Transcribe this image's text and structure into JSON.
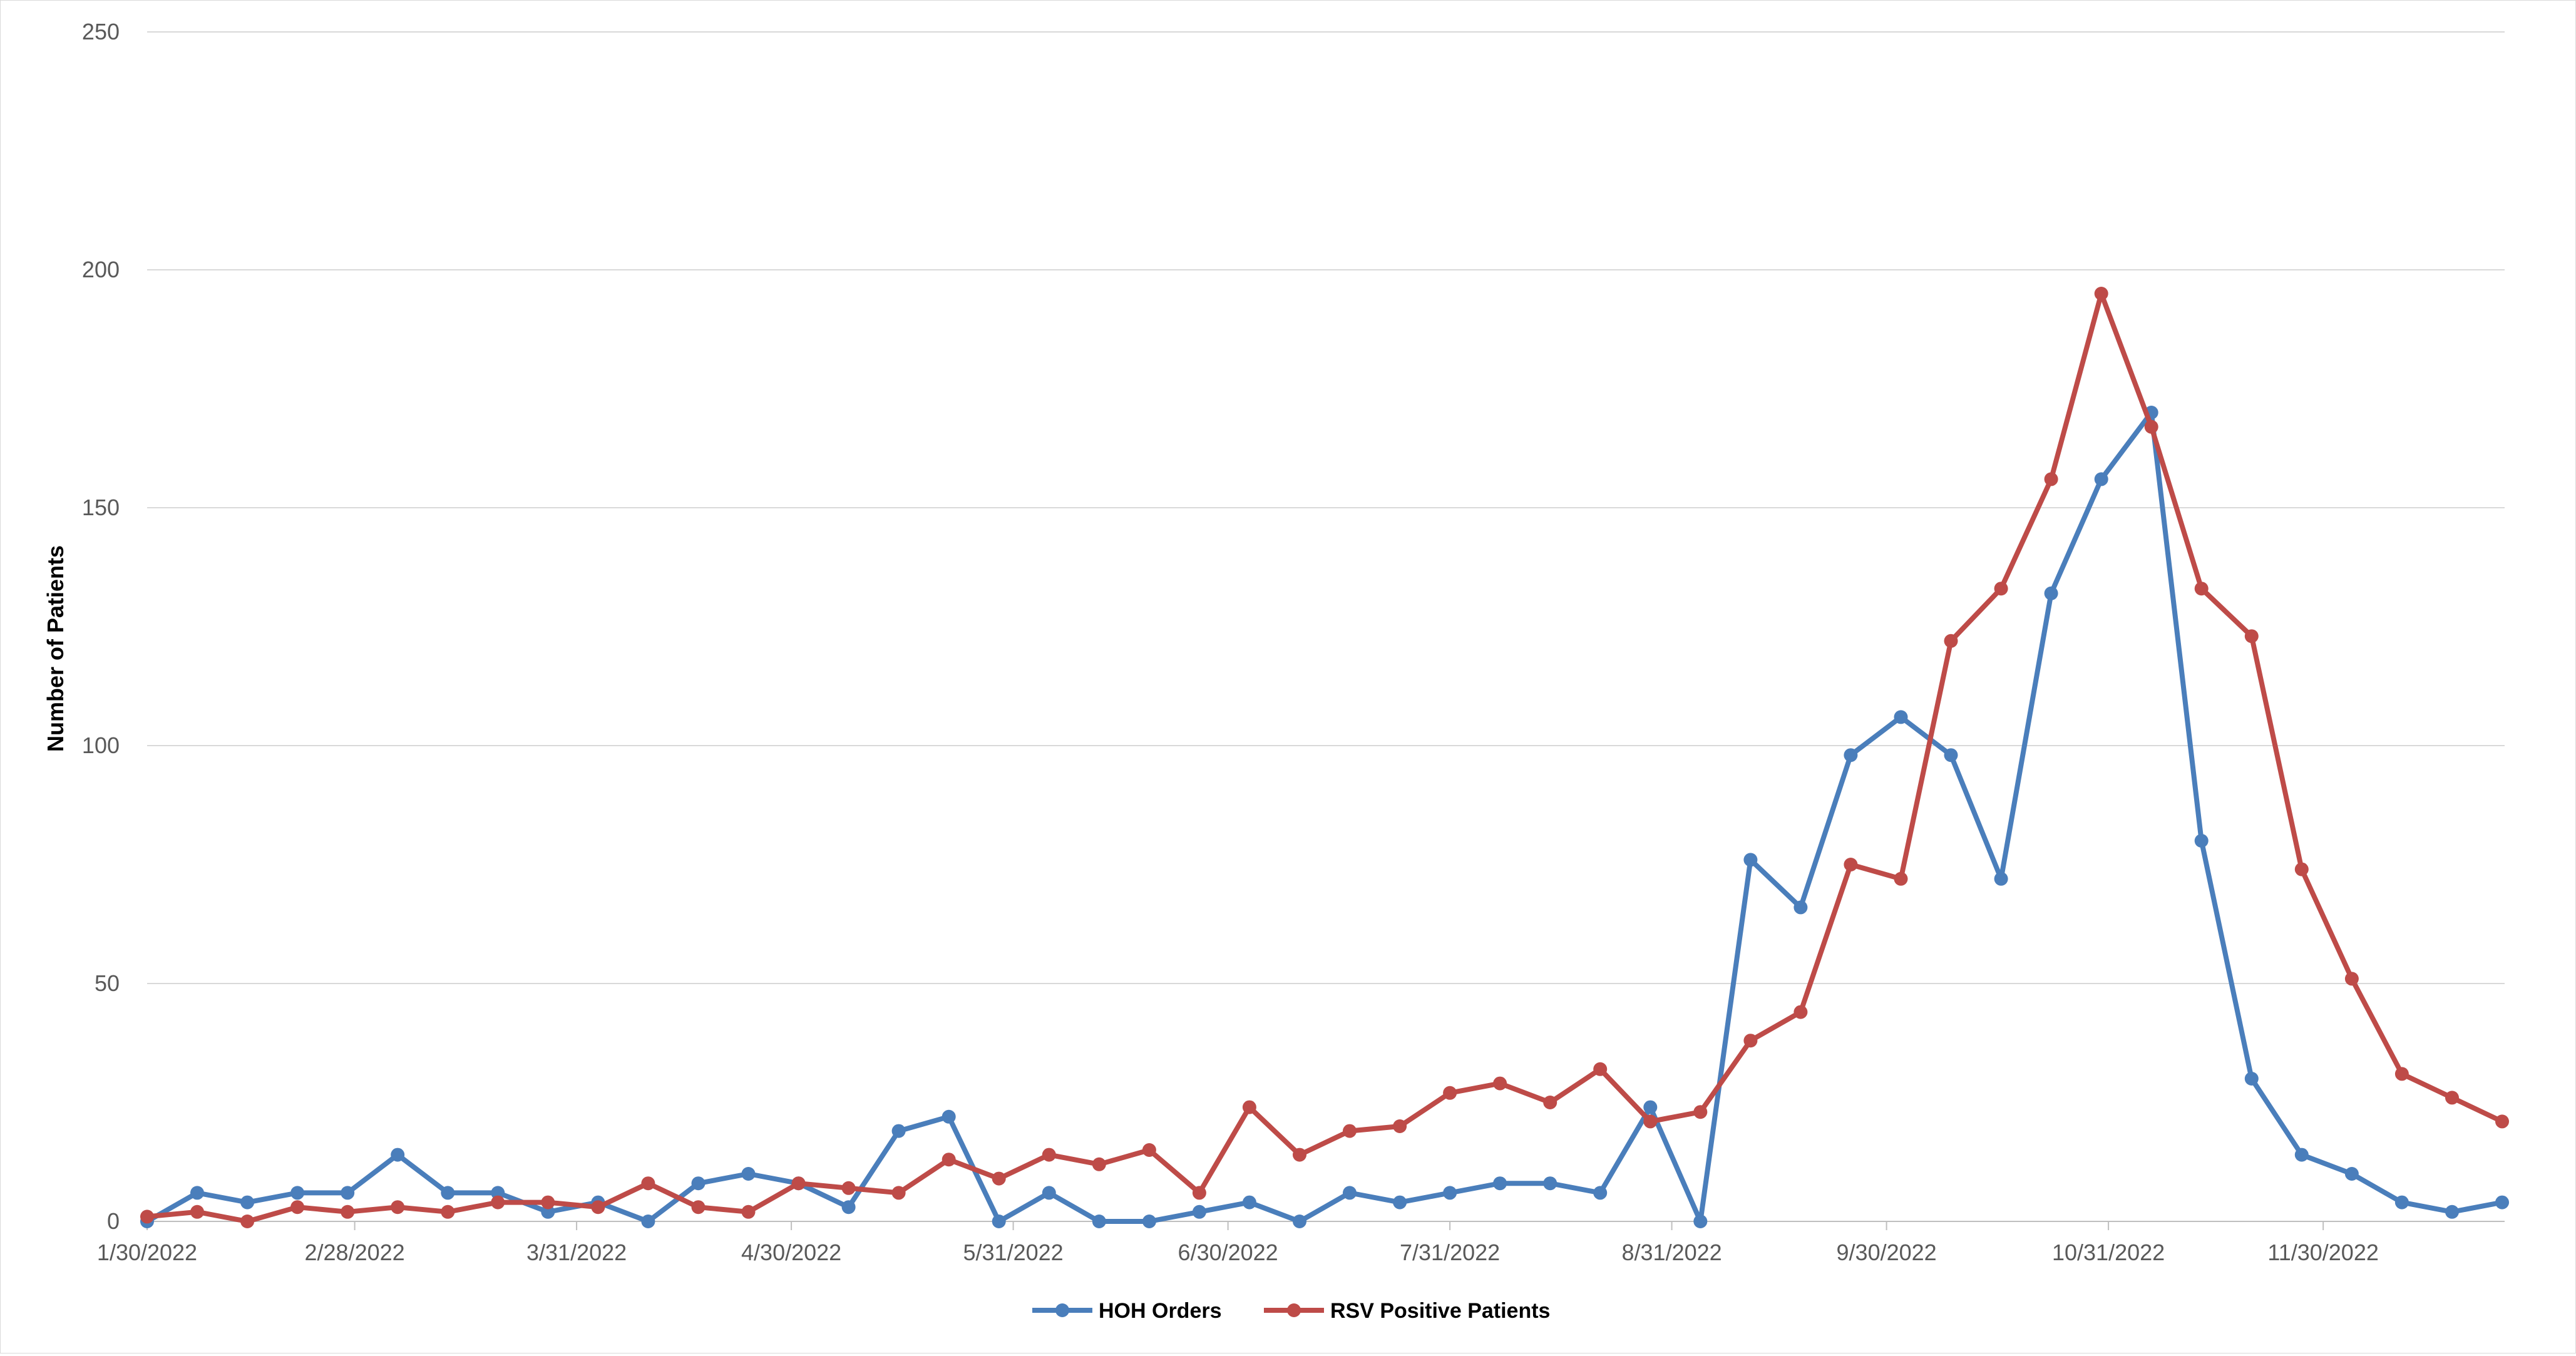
{
  "chart_data": {
    "type": "line",
    "title": "",
    "xlabel": "",
    "ylabel": "Number of Patients",
    "ylim": [
      0,
      250
    ],
    "yticks": [
      0,
      50,
      100,
      150,
      200,
      250
    ],
    "grid": true,
    "legend_position": "bottom",
    "x_tick_labels": [
      "1/30/2022",
      "2/28/2022",
      "3/31/2022",
      "4/30/2022",
      "5/31/2022",
      "6/30/2022",
      "7/31/2022",
      "8/31/2022",
      "9/30/2022",
      "10/31/2022",
      "11/30/2022"
    ],
    "x": [
      "1/30/2022",
      "2/6/2022",
      "2/13/2022",
      "2/20/2022",
      "2/27/2022",
      "3/6/2022",
      "3/13/2022",
      "3/20/2022",
      "3/27/2022",
      "4/3/2022",
      "4/10/2022",
      "4/17/2022",
      "4/24/2022",
      "5/1/2022",
      "5/8/2022",
      "5/15/2022",
      "5/22/2022",
      "5/29/2022",
      "6/5/2022",
      "6/12/2022",
      "6/19/2022",
      "6/26/2022",
      "7/3/2022",
      "7/10/2022",
      "7/17/2022",
      "7/24/2022",
      "7/31/2022",
      "8/7/2022",
      "8/14/2022",
      "8/21/2022",
      "8/28/2022",
      "9/4/2022",
      "9/11/2022",
      "9/18/2022",
      "9/25/2022",
      "10/2/2022",
      "10/9/2022",
      "10/16/2022",
      "10/23/2022",
      "10/30/2022",
      "11/6/2022",
      "11/13/2022",
      "11/20/2022",
      "11/27/2022",
      "12/4/2022",
      "12/11/2022",
      "12/18/2022",
      "12/25/2022"
    ],
    "series": [
      {
        "name": "HOH Orders",
        "color": "#4a7ebb",
        "values": [
          0,
          6,
          4,
          6,
          6,
          14,
          6,
          6,
          2,
          4,
          0,
          8,
          10,
          8,
          3,
          19,
          22,
          0,
          6,
          0,
          0,
          2,
          4,
          0,
          6,
          4,
          6,
          8,
          8,
          6,
          24,
          0,
          76,
          66,
          98,
          106,
          98,
          72,
          132,
          156,
          170,
          80,
          30,
          14,
          10,
          4,
          2,
          4
        ]
      },
      {
        "name": "RSV Positive Patients",
        "color": "#be4b48",
        "values": [
          1,
          2,
          0,
          3,
          2,
          3,
          2,
          4,
          4,
          3,
          8,
          3,
          2,
          8,
          7,
          6,
          13,
          9,
          14,
          12,
          15,
          6,
          24,
          14,
          19,
          20,
          27,
          29,
          25,
          32,
          21,
          23,
          38,
          44,
          75,
          72,
          122,
          133,
          156,
          195,
          167,
          133,
          123,
          74,
          51,
          31,
          26,
          21
        ]
      }
    ]
  }
}
